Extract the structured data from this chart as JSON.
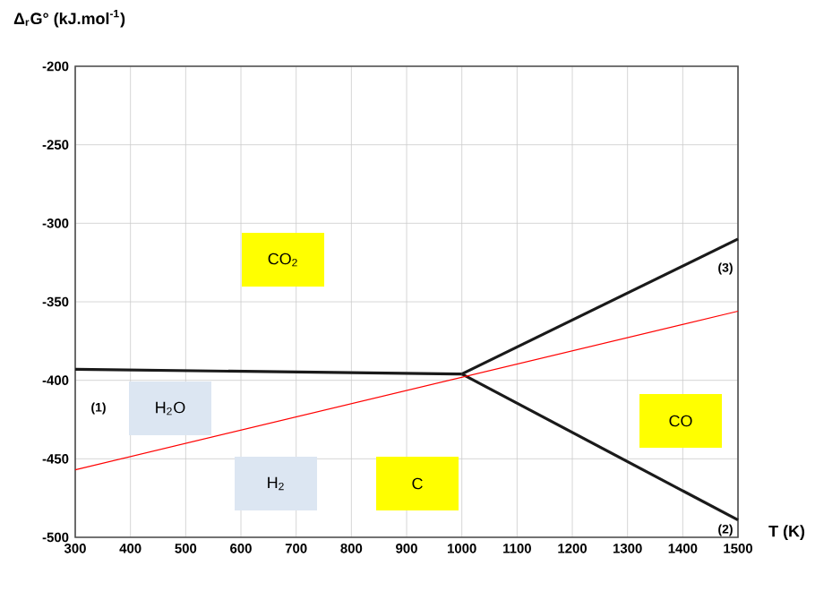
{
  "chart_data": {
    "type": "line",
    "ylabel": "Δ$_{r}$G° (kJ.mol$^{-1}$)",
    "xlabel": "T (K)",
    "xlim": [
      300,
      1500
    ],
    "xticks": [
      300,
      400,
      500,
      600,
      700,
      800,
      900,
      1000,
      1100,
      1200,
      1300,
      1400,
      1500
    ],
    "ylim": [
      -500,
      -200
    ],
    "yticks": [
      -500,
      -450,
      -400,
      -350,
      -300,
      -250,
      -200
    ],
    "grid": true,
    "marker": "none",
    "line_style": "solid",
    "series": [
      {
        "color": "#1a1a1a",
        "x": [
          300,
          1000
        ],
        "values": [
          -393,
          -396
        ]
      },
      {
        "color": "#1a1a1a",
        "x": [
          1000,
          1500
        ],
        "values": [
          -396,
          -310
        ]
      },
      {
        "color": "#1a1a1a",
        "x": [
          1000,
          1500
        ],
        "values": [
          -396,
          -489
        ]
      },
      {
        "color": "#ff0000",
        "x": [
          300,
          1500
        ],
        "values": [
          -457,
          -356
        ]
      }
    ],
    "annotations": [
      "(1)",
      "(2)",
      "(3)",
      "CO$_{2}$",
      "H$_{2}$O",
      "H$_{2}$",
      "C",
      "CO"
    ]
  }
}
